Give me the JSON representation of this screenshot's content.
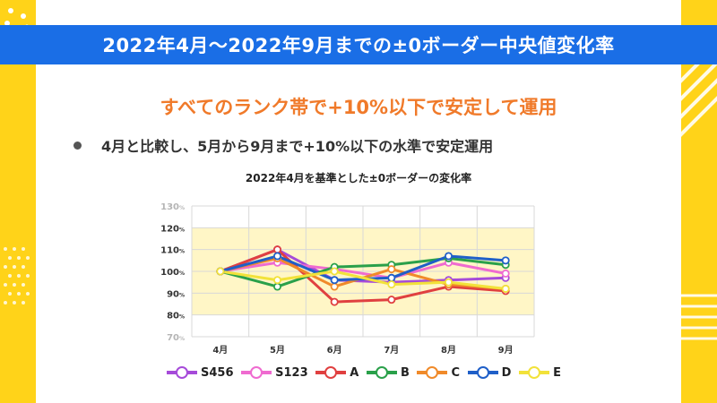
{
  "header": {
    "title": "2022年4月～2022年9月までの±0ボーダー中央値変化率"
  },
  "headline": "すべてのランク帯で+10%以下で安定して運用",
  "bullet": "4月と比較し、5月から9月まで+10%以下の水準で安定運用",
  "colors": {
    "title_bar": "#1a6ee6",
    "headline": "#f07a2a",
    "band": "#fff6c6",
    "frame": "#ffd319"
  },
  "chart_data": {
    "type": "line",
    "title": "2022年4月を基準とした±0ボーダーの変化率",
    "categories": [
      "4月",
      "5月",
      "6月",
      "7月",
      "8月",
      "9月"
    ],
    "ylim": [
      70,
      130
    ],
    "yticks": [
      70,
      80,
      90,
      100,
      110,
      120,
      130
    ],
    "ytick_unit": "%",
    "highlight_band": [
      80,
      120
    ],
    "grid": true,
    "legend_position": "bottom",
    "series": [
      {
        "name": "S456",
        "color": "#a64bd9",
        "values": [
          100,
          110,
          96,
          95,
          96,
          97
        ]
      },
      {
        "name": "S123",
        "color": "#ef6bd0",
        "values": [
          100,
          104,
          101,
          97,
          104,
          99
        ]
      },
      {
        "name": "A",
        "color": "#e04040",
        "values": [
          100,
          110,
          86,
          87,
          93,
          91
        ]
      },
      {
        "name": "B",
        "color": "#2aa04a",
        "values": [
          100,
          93,
          102,
          103,
          106,
          103
        ]
      },
      {
        "name": "C",
        "color": "#f08a2a",
        "values": [
          100,
          106,
          93,
          101,
          94,
          92
        ]
      },
      {
        "name": "D",
        "color": "#1f5fc8",
        "values": [
          100,
          107,
          96,
          97,
          107,
          105
        ]
      },
      {
        "name": "E",
        "color": "#f2e23a",
        "values": [
          100,
          96,
          100,
          94,
          95,
          92
        ]
      }
    ]
  }
}
